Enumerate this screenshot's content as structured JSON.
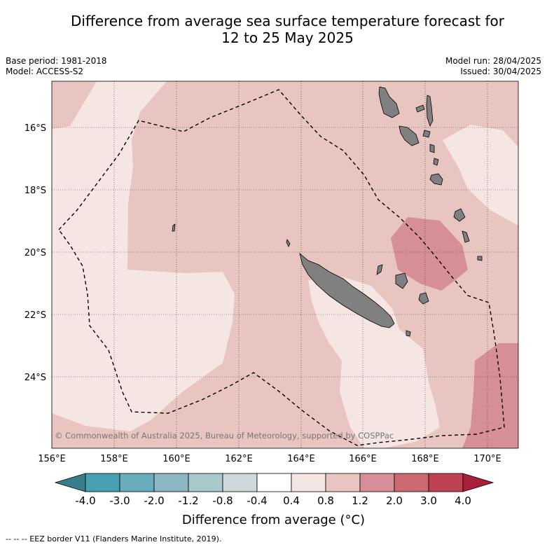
{
  "title_line1": "Difference from average sea surface temperature forecast for",
  "title_line2": "12 to 25 May 2025",
  "meta": {
    "base_period": "Base period: 1981-2018",
    "model": "Model: ACCESS-S2",
    "model_run": "Model run: 28/04/2025",
    "issued": "Issued: 30/04/2025"
  },
  "axes": {
    "lat_labels": [
      "16°S",
      "18°S",
      "20°S",
      "22°S",
      "24°S"
    ],
    "lon_labels": [
      "156°E",
      "158°E",
      "160°E",
      "162°E",
      "164°E",
      "166°E",
      "168°E",
      "170°E"
    ]
  },
  "copyright": "© Commonwealth of Australia 2025, Bureau of Meteorology, supported by COSPPac",
  "colorbar": {
    "labels": [
      "-4.0",
      "-3.0",
      "-2.0",
      "-1.2",
      "-0.8",
      "-0.4",
      "0.4",
      "0.8",
      "1.2",
      "2.0",
      "3.0",
      "4.0"
    ],
    "colors": [
      "#3a7e8c",
      "#46a0b2",
      "#69acbb",
      "#8db8c3",
      "#a9c8cc",
      "#cfd8da",
      "#ffffff",
      "#f5e6e4",
      "#e8c5c0",
      "#d68f96",
      "#cb6870",
      "#bd4252",
      "#a8203a"
    ],
    "label": "Difference from average (°C)"
  },
  "footer": "--  --  -- EEZ border V11 (Flanders Marine Institute, 2019).",
  "colors": {
    "anomaly_0.4_0.8": "#f5e6e4",
    "anomaly_0.8_1.2": "#e8c5c0",
    "anomaly_1.2_2.0": "#d68f96",
    "land": "#808080"
  }
}
